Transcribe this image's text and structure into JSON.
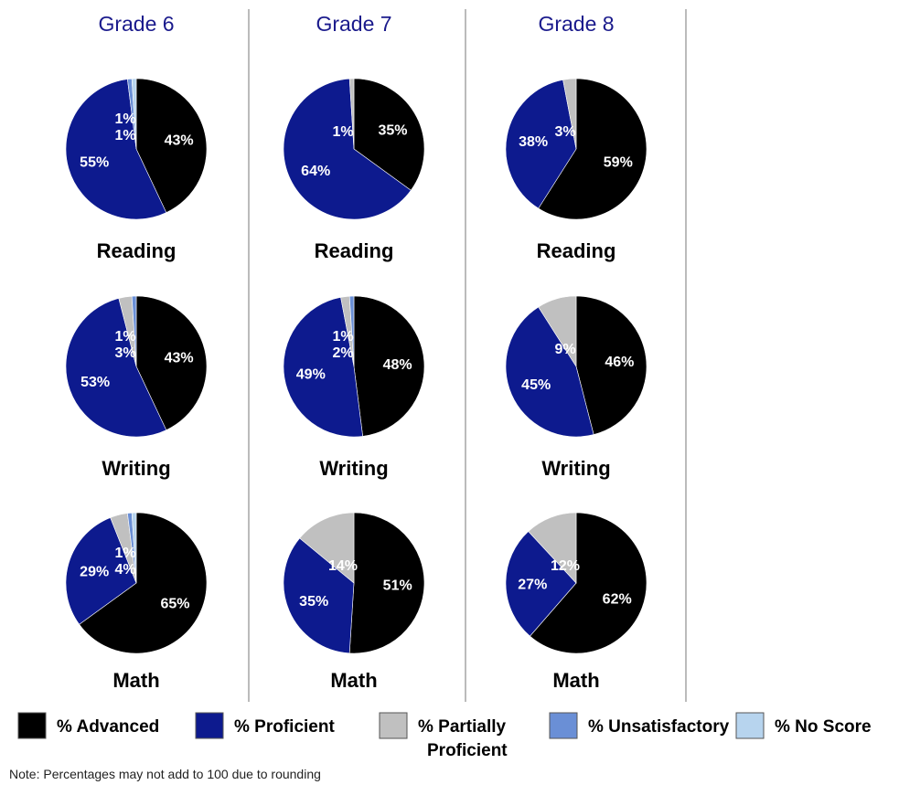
{
  "chart_data": {
    "type": "pie",
    "categories": [
      "% Advanced",
      "% Proficient",
      "% Partially Proficient",
      "% Unsatisfactory",
      "% No Score"
    ],
    "colors": [
      "#000000",
      "#0d1a8e",
      "#c0c0c0",
      "#6a8fd6",
      "#b7d4ee"
    ],
    "grades": [
      {
        "title": "Grade 6",
        "charts": [
          {
            "subject": "Reading",
            "values": [
              43,
              55,
              0,
              1,
              1
            ],
            "labels": [
              "43%",
              "55%",
              "",
              "1%",
              "1%"
            ]
          },
          {
            "subject": "Writing",
            "values": [
              43,
              53,
              3,
              1,
              0
            ],
            "labels": [
              "43%",
              "53%",
              "3%",
              "1%",
              ""
            ]
          },
          {
            "subject": "Math",
            "values": [
              65,
              29,
              4,
              1,
              1
            ],
            "labels": [
              "65%",
              "29%",
              "4%",
              "1%",
              ""
            ]
          }
        ]
      },
      {
        "title": "Grade 7",
        "charts": [
          {
            "subject": "Reading",
            "values": [
              35,
              64,
              1,
              0,
              0
            ],
            "labels": [
              "35%",
              "64%",
              "1%",
              "",
              ""
            ]
          },
          {
            "subject": "Writing",
            "values": [
              48,
              49,
              2,
              1,
              0
            ],
            "labels": [
              "48%",
              "49%",
              "2%",
              "1%",
              ""
            ]
          },
          {
            "subject": "Math",
            "values": [
              51,
              35,
              14,
              0,
              0
            ],
            "labels": [
              "51%",
              "35%",
              "14%",
              "",
              ""
            ]
          }
        ]
      },
      {
        "title": "Grade 8",
        "charts": [
          {
            "subject": "Reading",
            "values": [
              59,
              38,
              3,
              0,
              0
            ],
            "labels": [
              "59%",
              "38%",
              "3%",
              "",
              ""
            ]
          },
          {
            "subject": "Writing",
            "values": [
              46,
              45,
              9,
              0,
              0
            ],
            "labels": [
              "46%",
              "45%",
              "9%",
              "",
              ""
            ]
          },
          {
            "subject": "Math",
            "values": [
              62,
              27,
              12,
              0,
              0
            ],
            "labels": [
              "62%",
              "27%",
              "12%",
              "",
              ""
            ]
          }
        ]
      }
    ],
    "legend": [
      {
        "label": "% Advanced"
      },
      {
        "label": "% Proficient"
      },
      {
        "label": "% Partially",
        "label2": "Proficient"
      },
      {
        "label": "% Unsatisfactory"
      },
      {
        "label": "% No Score"
      }
    ],
    "legend_position": "bottom"
  },
  "note": "Note: Percentages may not add to 100 due to rounding"
}
